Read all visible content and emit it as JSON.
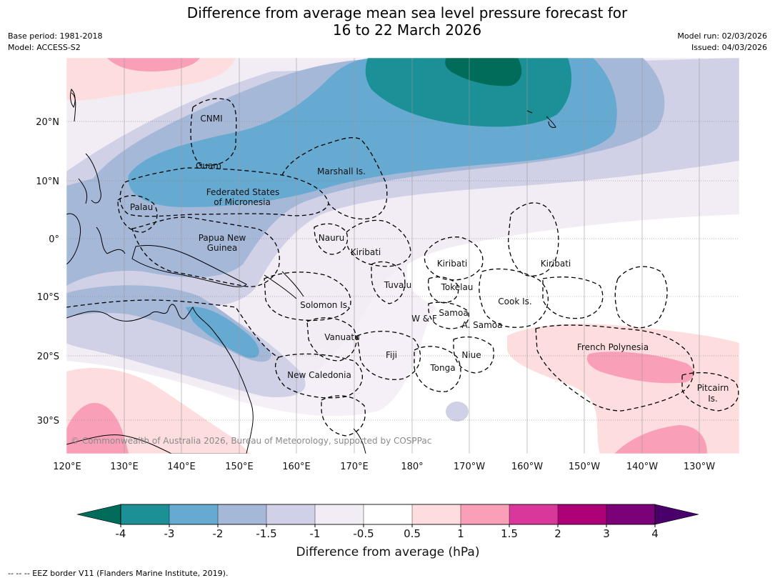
{
  "title": {
    "line1": "Difference from average mean sea level pressure forecast for",
    "line2": "16 to 22 March 2026"
  },
  "meta": {
    "base_period": "Base period: 1981-2018",
    "model": "Model: ACCESS-S2",
    "model_run": "Model run: 02/03/2026",
    "issued": "Issued: 04/03/2026"
  },
  "map": {
    "lon_ticks": [
      "120°E",
      "130°E",
      "140°E",
      "150°E",
      "160°E",
      "170°E",
      "180°",
      "170°W",
      "160°W",
      "150°W",
      "140°W",
      "130°W"
    ],
    "lat_ticks": [
      "20°N",
      "10°N",
      "0°",
      "10°S",
      "20°S",
      "30°S"
    ],
    "regions": {
      "cnmi": "CNMI",
      "guam": "Guam",
      "marshall": "Marshall Is.",
      "fsm_1": "Federated States",
      "fsm_2": "of Micronesia",
      "palau": "Palau",
      "png_1": "Papua New",
      "png_2": "Guinea",
      "nauru": "Nauru",
      "kiribati_west": "Kiribati",
      "kiribati_central": "Kiribati",
      "kiribati_east": "Kiribati",
      "tuvalu": "Tuvalu",
      "tokelau": "Tokelau",
      "cook": "Cook Is.",
      "solomon": "Solomon Is.",
      "wf": "W & F",
      "samoa": "Samoa",
      "asamoa": "A. Samoa",
      "vanuatu": "Vanuatu",
      "fiji": "Fiji",
      "niue": "Niue",
      "tonga": "Tonga",
      "frpoly": "French Polynesia",
      "newcal": "New Caledonia",
      "pitcairn_1": "Pitcairn",
      "pitcairn_2": "Is."
    },
    "copyright": "© Commonwealth of Australia 2026, Bureau of Meteorology, supported by COSPPac"
  },
  "colorbar": {
    "ticks": [
      "-4",
      "-3",
      "-2",
      "-1.5",
      "-1",
      "-0.5",
      "0.5",
      "1",
      "1.5",
      "2",
      "3",
      "4"
    ],
    "colors": [
      "#1b9096",
      "#66aad2",
      "#a6b8d8",
      "#d0d0e6",
      "#f2ecf5",
      "#ffffff",
      "#fddddd",
      "#f9a0b8",
      "#d9379a",
      "#ae0077",
      "#7a0177"
    ],
    "under_color": "#016c59",
    "over_color": "#49006a",
    "title": "Difference from average (hPa)"
  },
  "footer": "--  --  -- EEZ border V11 (Flanders Marine Institute, 2019)."
}
